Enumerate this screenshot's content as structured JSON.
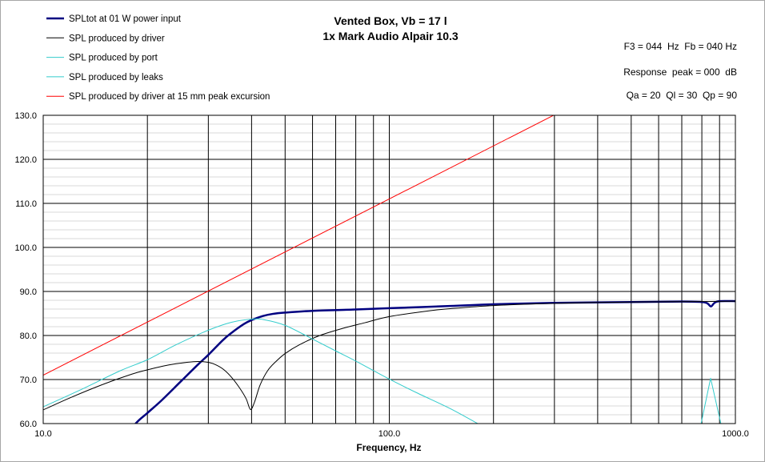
{
  "chart_data": {
    "type": "line",
    "title": "Vented Box, Vb = 17 l",
    "subtitle": "1x Mark Audio Alpair 10.3",
    "xlabel": "Frequency, Hz",
    "x_scale": "log",
    "xlim": [
      10,
      1000
    ],
    "ylim": [
      60,
      130
    ],
    "x_ticks": [
      "10.0",
      "100.0",
      "1000.0"
    ],
    "y_ticks": [
      "130.0",
      "120.0",
      "110.0",
      "100.0",
      "90.0",
      "80.0",
      "70.0",
      "60.0"
    ],
    "grid": true,
    "legend_position": "top-left",
    "annotations": [
      "F3 = 044  Hz  Fb = 040 Hz",
      "Response  peak = 000  dB",
      "Qa = 20  Ql = 30  Qp = 90"
    ],
    "series": [
      {
        "name": "SPLtot at 01 W power input",
        "color": "#000080",
        "points": [
          [
            17,
            56
          ],
          [
            18.5,
            60
          ],
          [
            20,
            62.4
          ],
          [
            22,
            65.3
          ],
          [
            25,
            69.6
          ],
          [
            28,
            73.4
          ],
          [
            30,
            75.6
          ],
          [
            33,
            78.9
          ],
          [
            35,
            80.6
          ],
          [
            38,
            82.6
          ],
          [
            40,
            83.5
          ],
          [
            43,
            84.4
          ],
          [
            46,
            84.9
          ],
          [
            50,
            85.2
          ],
          [
            60,
            85.6
          ],
          [
            80,
            85.9
          ],
          [
            100,
            86.2
          ],
          [
            150,
            86.7
          ],
          [
            200,
            87.1
          ],
          [
            300,
            87.4
          ],
          [
            500,
            87.6
          ],
          [
            700,
            87.7
          ],
          [
            800,
            87.6
          ],
          [
            830,
            87.3
          ],
          [
            850,
            86.6
          ],
          [
            870,
            87.4
          ],
          [
            900,
            87.8
          ],
          [
            1000,
            87.8
          ]
        ]
      },
      {
        "name": "SPL produced by driver",
        "color": "#000000",
        "points": [
          [
            10,
            63.1
          ],
          [
            12,
            65.9
          ],
          [
            15,
            69
          ],
          [
            18,
            71.2
          ],
          [
            20,
            72.2
          ],
          [
            23,
            73.3
          ],
          [
            26,
            73.9
          ],
          [
            28,
            74.1
          ],
          [
            30,
            73.9
          ],
          [
            31.6,
            73.3
          ],
          [
            33.3,
            72.2
          ],
          [
            35.1,
            70.4
          ],
          [
            37,
            68
          ],
          [
            38.6,
            65.6
          ],
          [
            39.7,
            63.2
          ],
          [
            40.8,
            64.9
          ],
          [
            42.3,
            68.7
          ],
          [
            44.5,
            72
          ],
          [
            46.9,
            74
          ],
          [
            50,
            75.9
          ],
          [
            55,
            77.9
          ],
          [
            63,
            80
          ],
          [
            74,
            81.7
          ],
          [
            85,
            82.9
          ],
          [
            100,
            84.3
          ],
          [
            130,
            85.6
          ],
          [
            150,
            86.1
          ],
          [
            200,
            86.8
          ],
          [
            300,
            87.3
          ],
          [
            500,
            87.6
          ],
          [
            800,
            87.7
          ],
          [
            1000,
            87.8
          ]
        ]
      },
      {
        "name": "SPL produced by port",
        "color": "#33CCCC",
        "points": [
          [
            10,
            63.8
          ],
          [
            12.77,
            67.6
          ],
          [
            16.7,
            72
          ],
          [
            20,
            74.5
          ],
          [
            24.2,
            77.9
          ],
          [
            30,
            81.2
          ],
          [
            35,
            83
          ],
          [
            40,
            83.7
          ],
          [
            43.4,
            83.6
          ],
          [
            50,
            82.3
          ],
          [
            60,
            79.2
          ],
          [
            70,
            76.5
          ],
          [
            80,
            74.2
          ],
          [
            100,
            70.1
          ],
          [
            120,
            67
          ],
          [
            150,
            63.4
          ],
          [
            180,
            60
          ],
          [
            190,
            59
          ]
        ]
      },
      {
        "name": "SPL produced by leaks",
        "color": "#33CCCC",
        "points": [
          [
            785,
            57.7
          ],
          [
            848,
            70.3
          ],
          [
            915,
            58.8
          ]
        ]
      },
      {
        "name": "SPL produced by driver at 15 mm peak excursion",
        "color": "#FF0000",
        "points": [
          [
            10,
            71
          ],
          [
            300,
            130.1
          ]
        ]
      }
    ]
  }
}
